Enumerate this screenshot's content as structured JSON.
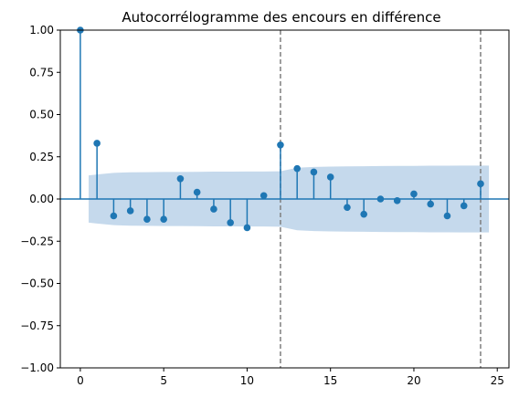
{
  "chart_data": {
    "type": "scatter",
    "title": "Autocorrélogramme des encours en différence",
    "xlabel": "",
    "ylabel": "",
    "xlim": [
      -1.2,
      25.7
    ],
    "ylim": [
      -1.0,
      1.0
    ],
    "grid": false,
    "x_ticks": [
      0,
      5,
      10,
      15,
      20,
      25
    ],
    "x_tick_labels": [
      "0",
      "5",
      "10",
      "15",
      "20",
      "25"
    ],
    "y_ticks": [
      1.0,
      0.75,
      0.5,
      0.25,
      0.0,
      -0.25,
      -0.5,
      -0.75,
      -1.0
    ],
    "y_tick_labels": [
      "1.00",
      "0.75",
      "0.50",
      "0.25",
      "0.00",
      "−0.25",
      "−0.50",
      "−0.75",
      "−1.00"
    ],
    "lags": [
      0,
      1,
      2,
      3,
      4,
      5,
      6,
      7,
      8,
      9,
      10,
      11,
      12,
      13,
      14,
      15,
      16,
      17,
      18,
      19,
      20,
      21,
      22,
      23,
      24
    ],
    "acf": [
      1.0,
      0.33,
      -0.1,
      -0.07,
      -0.12,
      -0.12,
      0.12,
      0.04,
      -0.06,
      -0.14,
      -0.17,
      0.02,
      0.32,
      0.18,
      0.16,
      0.13,
      -0.05,
      -0.09,
      0.0,
      -0.01,
      0.03,
      -0.03,
      -0.1,
      -0.04,
      0.09
    ],
    "confidence_band": {
      "lags": [
        0.5,
        1,
        2,
        3,
        4,
        5,
        6,
        7,
        8,
        9,
        10,
        11,
        12,
        13,
        14,
        15,
        16,
        17,
        18,
        19,
        20,
        21,
        22,
        23,
        24,
        24.5
      ],
      "upper": [
        0.14,
        0.145,
        0.155,
        0.158,
        0.159,
        0.16,
        0.16,
        0.161,
        0.162,
        0.162,
        0.163,
        0.163,
        0.164,
        0.185,
        0.19,
        0.192,
        0.193,
        0.194,
        0.195,
        0.196,
        0.196,
        0.197,
        0.197,
        0.198,
        0.198,
        0.198
      ]
    },
    "vertical_lines": [
      12,
      24
    ],
    "colors": {
      "marker": "#1f77b4",
      "band": "#c5d9ec",
      "vline": "#7f7f7f",
      "zero_line": "#1f77b4"
    }
  }
}
